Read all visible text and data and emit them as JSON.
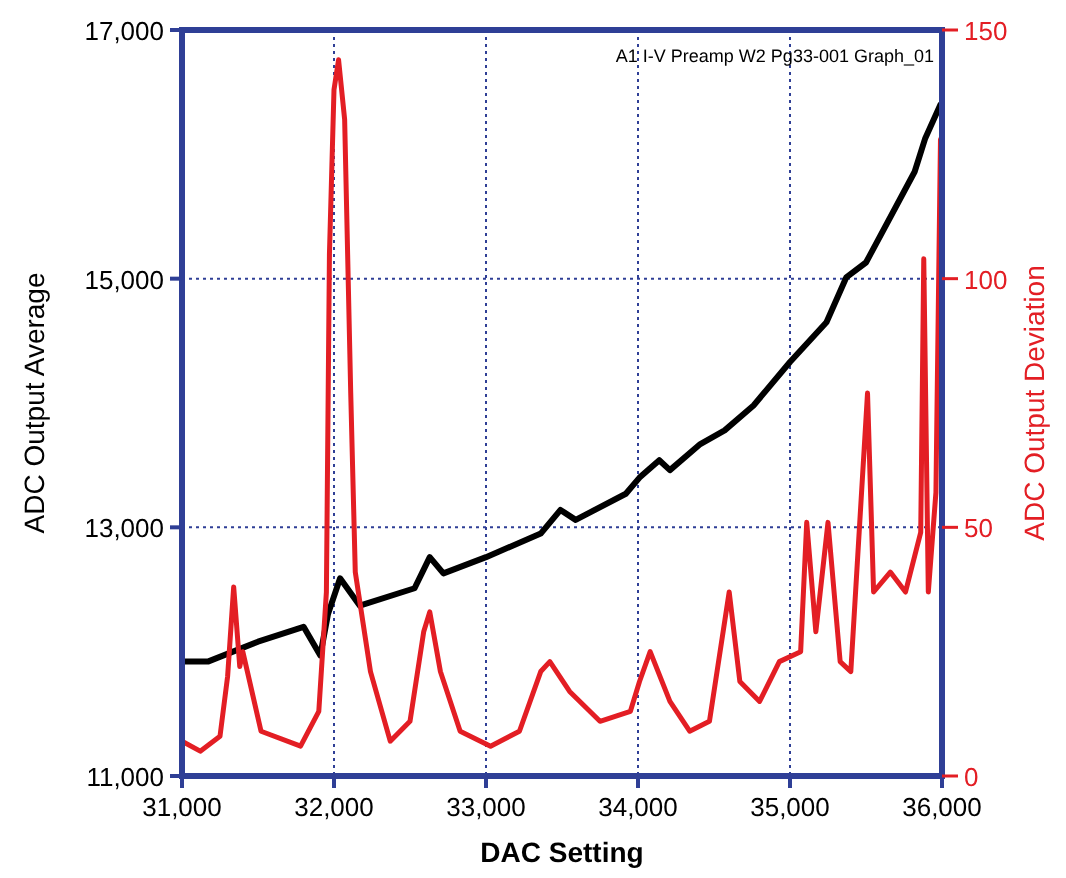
{
  "chart_data": {
    "type": "line",
    "xlabel": "DAC Setting",
    "ylabel": "ADC Output Average",
    "y2label": "ADC Output Deviation",
    "annotations": [
      "A1 I-V Preamp W2 Pg33-001 Graph_01"
    ],
    "xlim": [
      31000,
      36000
    ],
    "xticks": [
      {
        "value": 31000,
        "label": "31,000"
      },
      {
        "value": 32000,
        "label": "32,000"
      },
      {
        "value": 33000,
        "label": "33,000"
      },
      {
        "value": 34000,
        "label": "34,000"
      },
      {
        "value": 35000,
        "label": "35,000"
      },
      {
        "value": 36000,
        "label": "36,000"
      }
    ],
    "ylim": [
      11000,
      17000
    ],
    "yticks": [
      {
        "value": 11000,
        "label": "11,000"
      },
      {
        "value": 13000,
        "label": "13,000"
      },
      {
        "value": 15000,
        "label": "15,000"
      },
      {
        "value": 17000,
        "label": "17,000"
      }
    ],
    "y2lim": [
      0,
      150
    ],
    "y2ticks": [
      0,
      50,
      100,
      150
    ],
    "grid": true,
    "line_style": "solid",
    "series": [
      {
        "color": "#000000",
        "x": [
          31000,
          31170,
          31500,
          31800,
          31910,
          31960,
          32040,
          32170,
          32530,
          32630,
          32720,
          33000,
          33360,
          33490,
          33590,
          33920,
          34010,
          34140,
          34210,
          34410,
          34570,
          34760,
          35000,
          35240,
          35370,
          35500,
          35680,
          35820,
          35890,
          35990
        ],
        "values": [
          11920,
          11920,
          12080,
          12200,
          11970,
          12300,
          12590,
          12370,
          12510,
          12760,
          12630,
          12760,
          12950,
          13140,
          13060,
          13270,
          13400,
          13540,
          13460,
          13670,
          13780,
          13980,
          14330,
          14650,
          15010,
          15130,
          15540,
          15860,
          16130,
          16400
        ]
      },
      {
        "color": "#e31e24",
        "axis": "y2",
        "x": [
          31000,
          31120,
          31250,
          31300,
          31340,
          31380,
          31400,
          31520,
          31780,
          31900,
          31950,
          31970,
          32000,
          32030,
          32070,
          32110,
          32140,
          32240,
          32370,
          32500,
          32590,
          32630,
          32700,
          32830,
          33030,
          33220,
          33360,
          33420,
          33550,
          33750,
          33950,
          34010,
          34080,
          34210,
          34340,
          34470,
          34600,
          34670,
          34800,
          34930,
          35070,
          35110,
          35170,
          35250,
          35330,
          35400,
          35510,
          35550,
          35660,
          35760,
          35860,
          35880,
          35910,
          35960,
          35990
        ],
        "values": [
          7,
          5,
          8,
          20,
          38,
          22,
          25,
          9,
          6,
          13,
          37,
          105,
          138,
          144,
          132,
          77,
          41,
          21,
          7,
          11,
          29,
          33,
          21,
          9,
          6,
          9,
          21,
          23,
          17,
          11,
          13,
          19,
          25,
          15,
          9,
          11,
          37,
          19,
          15,
          23,
          25,
          51,
          29,
          51,
          23,
          21,
          77,
          37,
          41,
          37,
          49,
          104,
          37,
          57,
          128
        ]
      }
    ]
  }
}
